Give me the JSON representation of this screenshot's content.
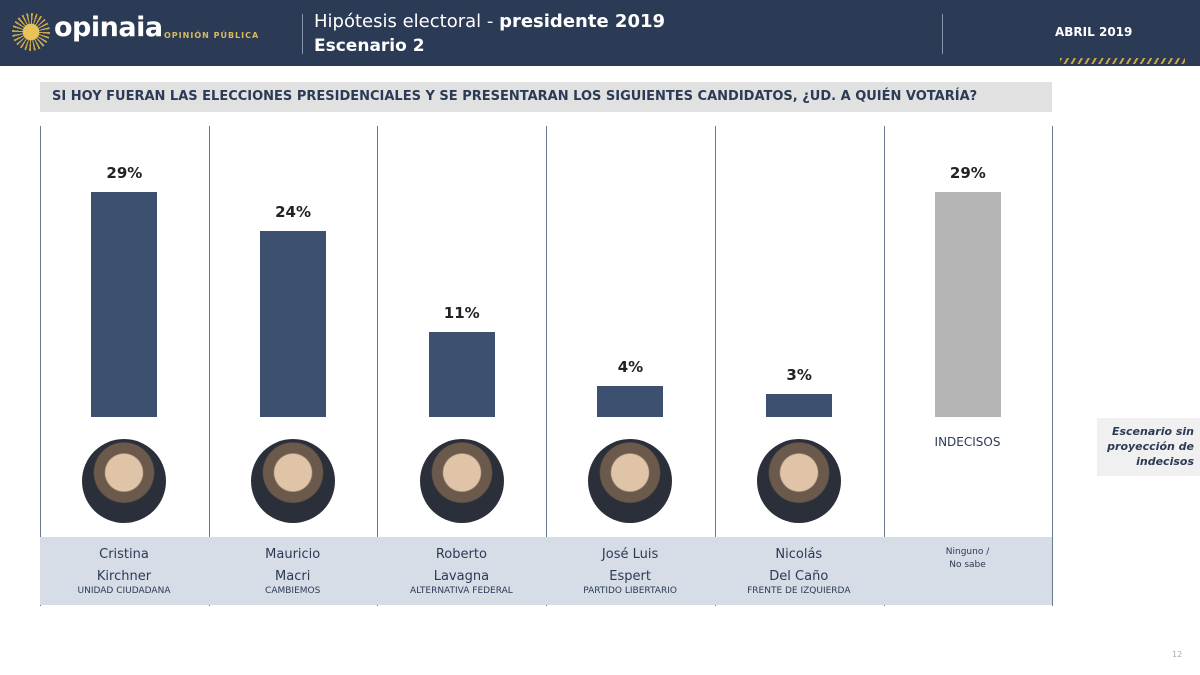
{
  "header": {
    "brand": "opinaia",
    "brand_sub": "OPINIÓN PÚBLICA",
    "title_light": "Hipótesis electoral - ",
    "title_bold": "presidente 2019",
    "subtitle": "Escenario 2",
    "date": "ABRIL 2019"
  },
  "question": "SI HOY FUERAN LAS ELECCIONES PRESIDENCIALES Y SE PRESENTARAN LOS SIGUIENTES CANDIDATOS, ¿UD. A QUIÉN VOTARÍA?",
  "chart_data": {
    "type": "bar",
    "categories": [
      "Cristina Kirchner",
      "Mauricio Macri",
      "Roberto Lavagna",
      "José Luis Espert",
      "Nicolás Del Caño",
      "INDECISOS"
    ],
    "values": [
      29,
      24,
      11,
      4,
      3,
      29
    ],
    "value_labels": [
      "29%",
      "24%",
      "11%",
      "4%",
      "3%",
      "29%"
    ],
    "colors": [
      "#3e5070",
      "#3e5070",
      "#3e5070",
      "#3e5070",
      "#3e5070",
      "#b5b5b5"
    ],
    "ylim": [
      0,
      30
    ]
  },
  "candidates": [
    {
      "first": "Cristina",
      "last": "Kirchner",
      "party": "UNIDAD CIUDADANA"
    },
    {
      "first": "Mauricio",
      "last": "Macri",
      "party": "CAMBIEMOS"
    },
    {
      "first": "Roberto",
      "last": "Lavagna",
      "party": "ALTERNATIVA FEDERAL"
    },
    {
      "first": "José Luis",
      "last": "Espert",
      "party": "PARTIDO LIBERTARIO"
    },
    {
      "first": "Nicolás",
      "last": "Del Caño",
      "party": "FRENTE DE IZQUIERDA"
    }
  ],
  "undecided": {
    "label": "INDECISOS",
    "line1": "Ninguno /",
    "line2": "No sabe"
  },
  "note": "Escenario sin proyección de indecisos",
  "page_number": "12"
}
